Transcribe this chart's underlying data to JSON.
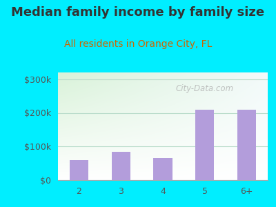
{
  "title": "Median family income by family size",
  "subtitle": "All residents in Orange City, FL",
  "categories": [
    "2",
    "3",
    "4",
    "5",
    "6+"
  ],
  "values": [
    60000,
    85000,
    65000,
    210000,
    210000
  ],
  "bar_color": "#b39ddb",
  "title_color": "#333333",
  "subtitle_color": "#cc6600",
  "outer_bg": "#00eeff",
  "yticks": [
    0,
    100000,
    200000,
    300000
  ],
  "ytick_labels": [
    "$0",
    "$100k",
    "$200k",
    "$300k"
  ],
  "ylim": [
    0,
    320000
  ],
  "watermark": "City-Data.com",
  "title_fontsize": 13,
  "subtitle_fontsize": 10,
  "tick_fontsize": 9,
  "grid_color": "#bbddcc"
}
